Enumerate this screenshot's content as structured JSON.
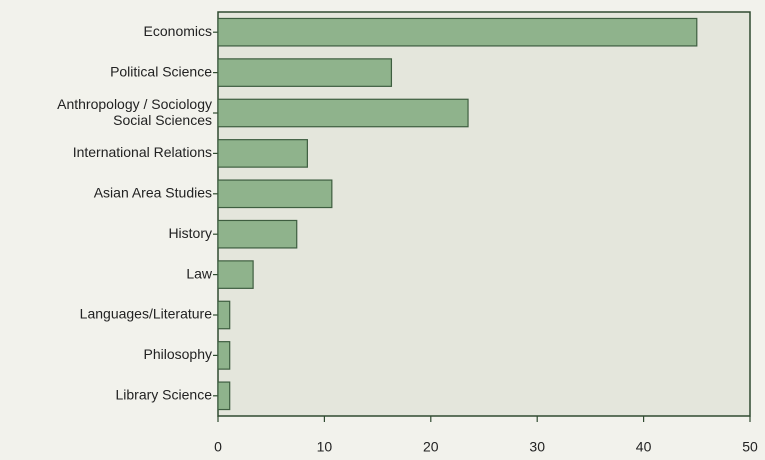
{
  "chart_data": {
    "type": "bar",
    "orientation": "horizontal",
    "categories": [
      "Economics",
      "Political Science",
      "Anthropology / Sociology\nSocial Sciences",
      "International Relations",
      "Asian Area Studies",
      "History",
      "Law",
      "Languages/Literature",
      "Philosophy",
      "Library Science"
    ],
    "values": [
      45,
      16.3,
      23.5,
      8.4,
      10.7,
      7.4,
      3.3,
      1.1,
      1.1,
      1.1
    ],
    "color": "#8fb38c",
    "xlim": [
      0,
      50
    ],
    "xticks": [
      0,
      10,
      20,
      30,
      40,
      50
    ]
  }
}
